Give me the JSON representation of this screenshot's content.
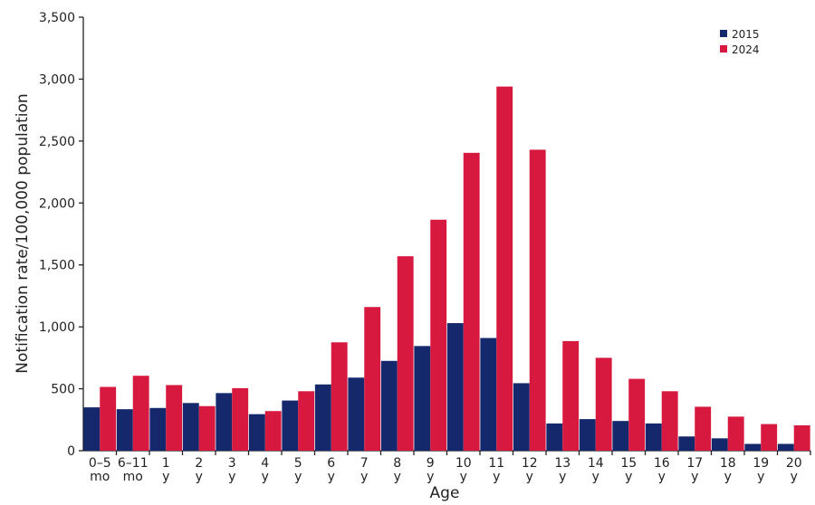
{
  "chart_data": {
    "type": "bar",
    "x_label": "Age",
    "y_label": "Notification rate/100,000 population",
    "categories": [
      "0–5\nmo",
      "6–11\nmo",
      "1\ny",
      "2\ny",
      "3\ny",
      "4\ny",
      "5\ny",
      "6\ny",
      "7\ny",
      "8\ny",
      "9\ny",
      "10\ny",
      "11\ny",
      "12\ny",
      "13\ny",
      "14\ny",
      "15\ny",
      "16\ny",
      "17\ny",
      "18\ny",
      "19\ny",
      "20\ny"
    ],
    "series": [
      {
        "name": "2015",
        "color": "#14286b",
        "values": [
          350,
          335,
          345,
          385,
          465,
          295,
          405,
          535,
          590,
          725,
          845,
          1030,
          910,
          545,
          220,
          255,
          240,
          220,
          115,
          100,
          55,
          55
        ]
      },
      {
        "name": "2024",
        "color": "#d7193f",
        "values": [
          515,
          605,
          530,
          360,
          505,
          320,
          480,
          875,
          1160,
          1570,
          1865,
          2405,
          2940,
          2430,
          885,
          750,
          580,
          480,
          355,
          275,
          215,
          205
        ]
      }
    ],
    "ylim": [
      0,
      3500
    ],
    "yticks": [
      0,
      500,
      {
        "value": 1000,
        "label": "1,000"
      },
      {
        "value": 1500,
        "label": "1,500"
      },
      {
        "value": 2000,
        "label": "2,000"
      },
      {
        "value": 2500,
        "label": "2,500"
      },
      {
        "value": 3000,
        "label": "3,000"
      },
      {
        "value": 3500,
        "label": "3,500"
      }
    ],
    "grid": false,
    "legend": "upper right"
  }
}
